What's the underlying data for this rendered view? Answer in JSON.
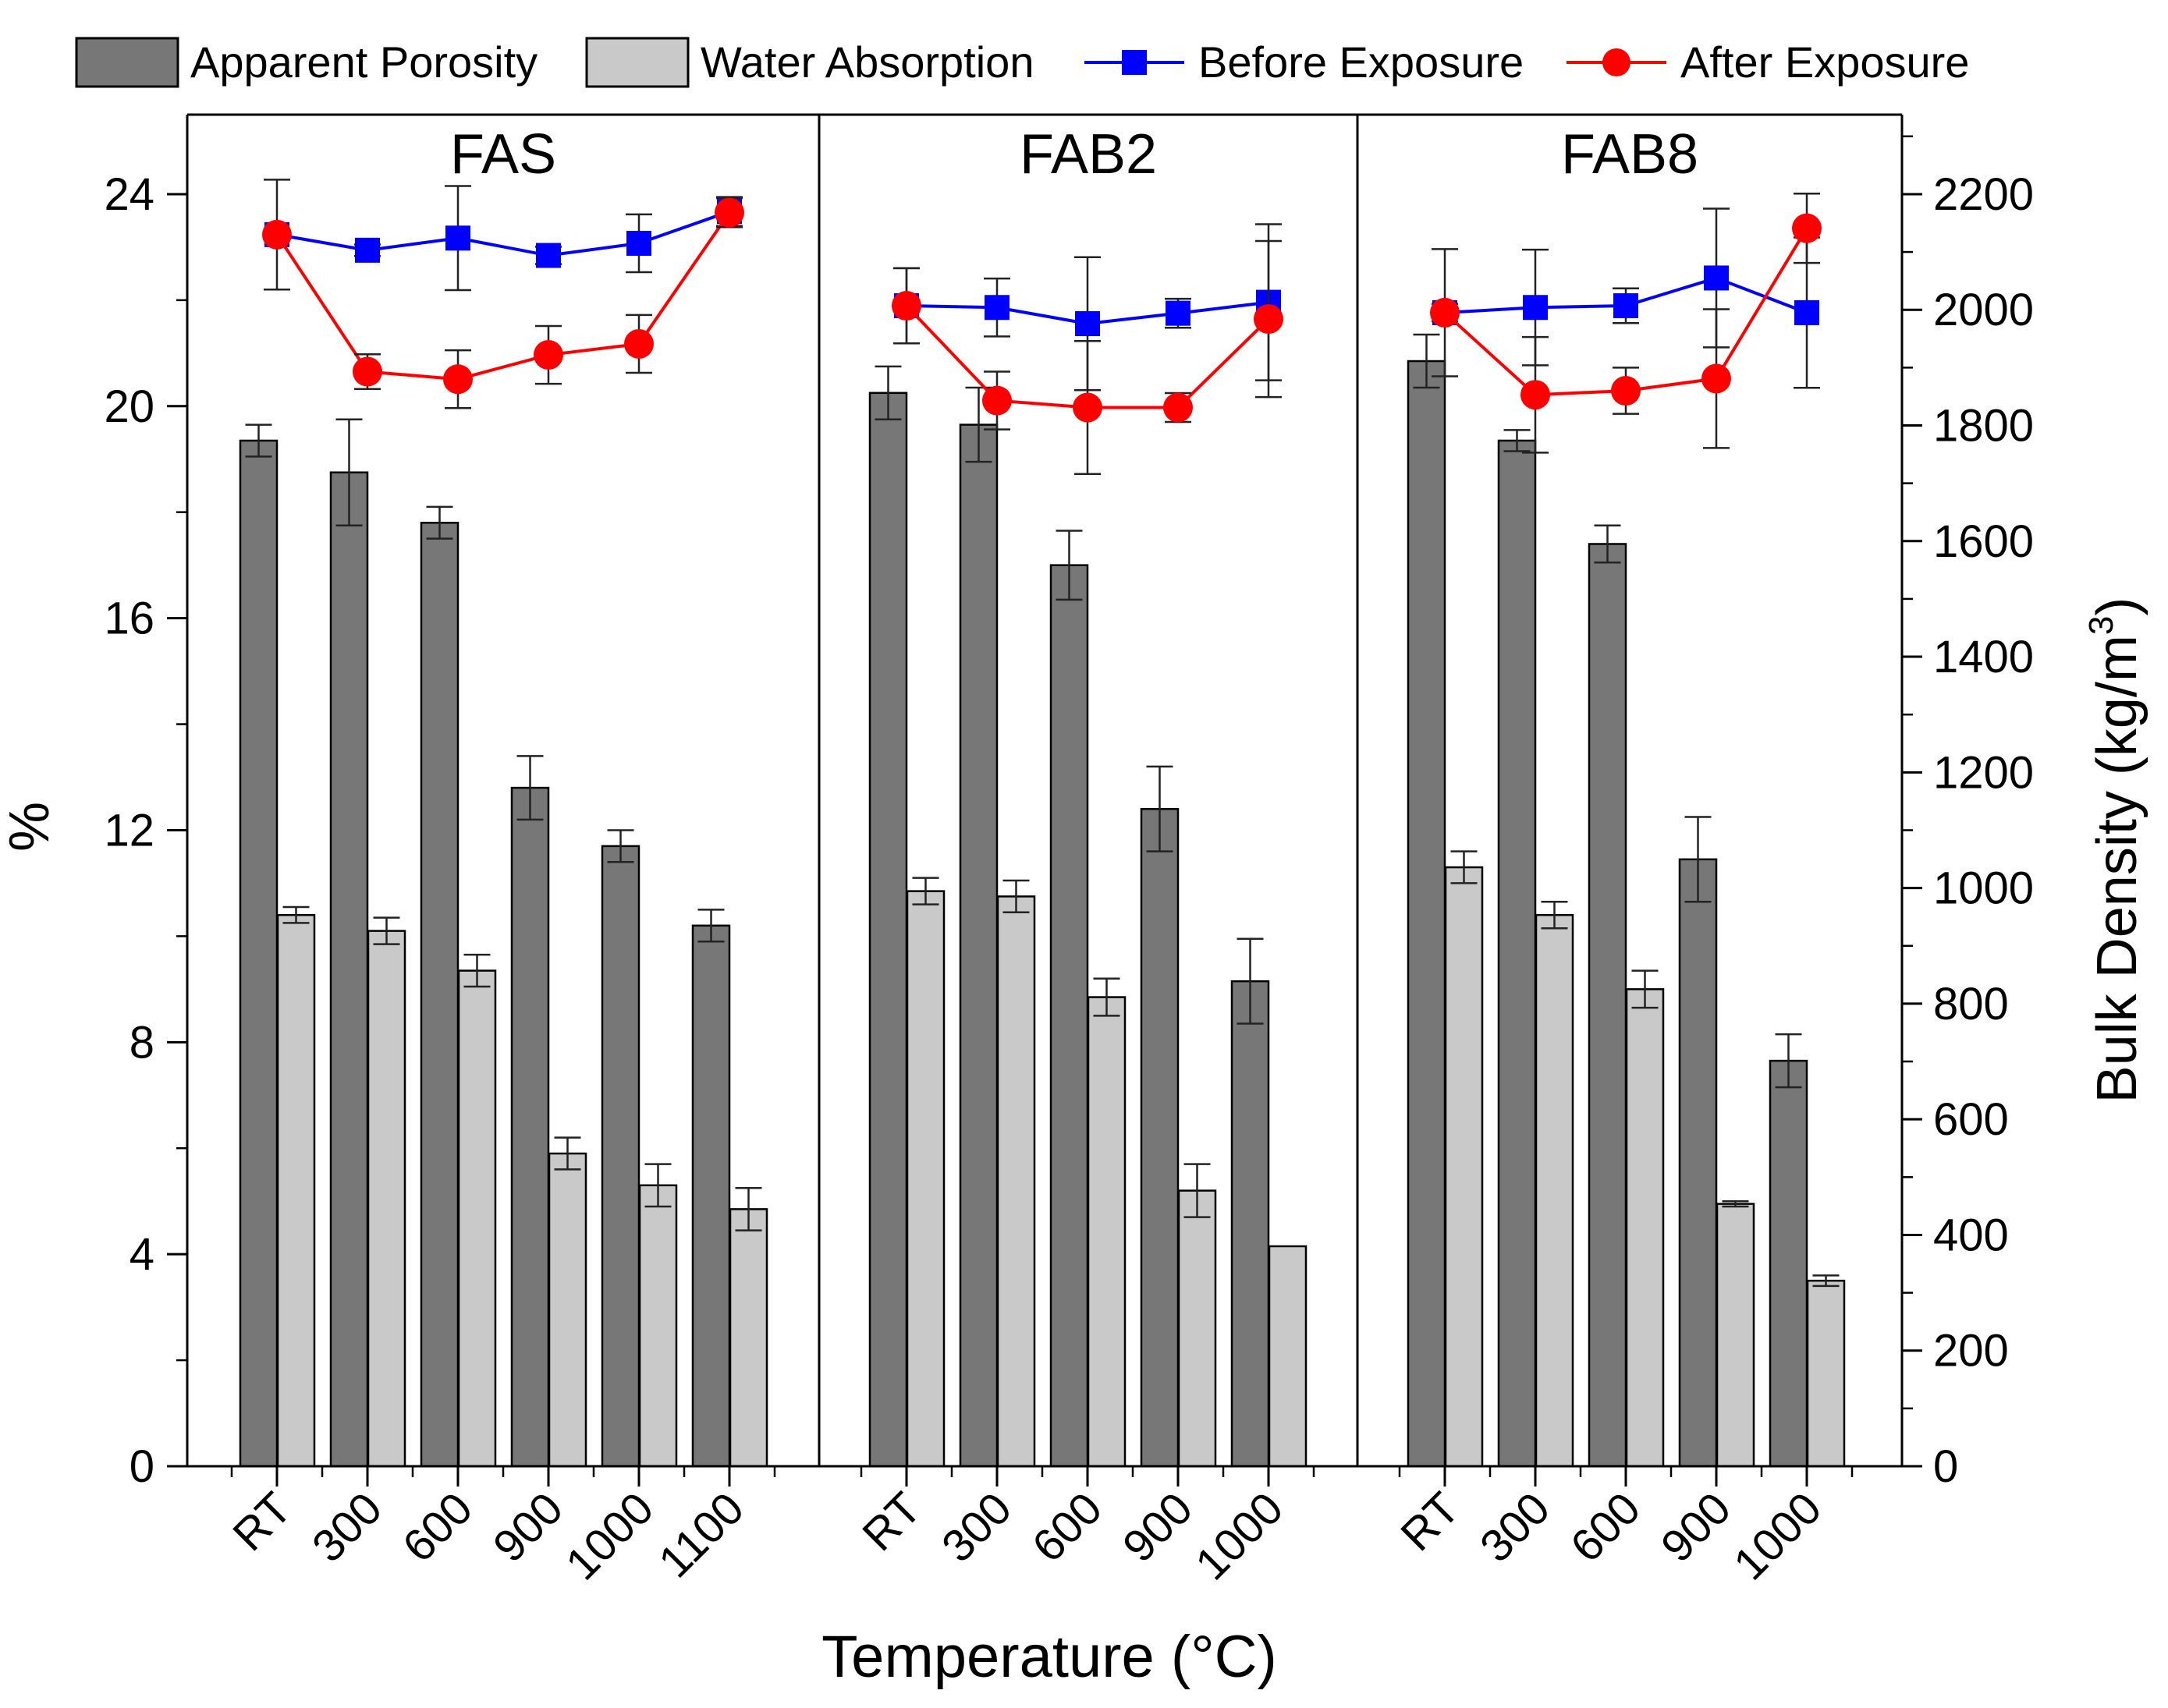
{
  "chart_data": {
    "type": "bar",
    "legend": {
      "position": "top",
      "entries": [
        {
          "key": "porosity",
          "label": "Apparent Porosity",
          "kind": "bar"
        },
        {
          "key": "absorption",
          "label": "Water Absorption",
          "kind": "bar"
        },
        {
          "key": "before",
          "label": "Before Exposure",
          "kind": "line-square"
        },
        {
          "key": "after",
          "label": "After Exposure",
          "kind": "line-circle"
        }
      ]
    },
    "colors": {
      "porosity": "#777777",
      "absorption": "#c9c9c9",
      "before": "#0000ff",
      "after": "#ff0000",
      "axis": "#000000"
    },
    "xlabel": "Temperature (°C)",
    "ylabel_left": "%",
    "ylabel_right": "Bulk Density (kg/m",
    "ylabel_right_sup": "3",
    "ylabel_right_tail": ")",
    "ylim_left": [
      0,
      25.5
    ],
    "ylim_right": [
      0,
      2337.5
    ],
    "yticks_left": [
      0,
      4,
      8,
      12,
      16,
      20,
      24
    ],
    "yticks_right": [
      0,
      200,
      400,
      600,
      800,
      1000,
      1200,
      1400,
      1600,
      1800,
      2000,
      2200
    ],
    "panels": [
      {
        "name": "FAS",
        "categories": [
          "RT",
          "300",
          "600",
          "900",
          "1000",
          "1100"
        ],
        "porosity": [
          19.35,
          18.75,
          17.8,
          12.8,
          11.7,
          10.2
        ],
        "porosity_err": [
          0.3,
          1.0,
          0.3,
          0.6,
          0.3,
          0.3
        ],
        "absorption": [
          10.4,
          10.1,
          9.35,
          5.9,
          5.3,
          4.85
        ],
        "absorption_err": [
          0.15,
          0.25,
          0.3,
          0.3,
          0.4,
          0.4
        ],
        "before_density": [
          2130,
          2103,
          2124,
          2094,
          2115,
          2170
        ],
        "before_err": [
          95,
          10,
          90,
          15,
          50,
          25
        ],
        "after_density": [
          2130,
          1893,
          1880,
          1922,
          1941,
          2168
        ],
        "after_err": [
          10,
          30,
          50,
          50,
          50,
          25
        ]
      },
      {
        "name": "FAB2",
        "categories": [
          "RT",
          "300",
          "600",
          "900",
          "1000"
        ],
        "porosity": [
          20.25,
          19.65,
          17.0,
          12.4,
          9.15
        ],
        "porosity_err": [
          0.5,
          0.7,
          0.65,
          0.8,
          0.8
        ],
        "absorption": [
          10.85,
          10.75,
          8.85,
          5.2,
          4.15
        ],
        "absorption_err": [
          0.25,
          0.3,
          0.35,
          0.5,
          0.0
        ],
        "before_density": [
          2007,
          2004,
          1976,
          1994,
          2013
        ],
        "before_err": [
          65,
          50,
          115,
          25,
          135
        ],
        "after_density": [
          2007,
          1843,
          1831,
          1831,
          1984
        ],
        "after_err": [
          65,
          50,
          115,
          25,
          135
        ]
      },
      {
        "name": "FAB8",
        "categories": [
          "RT",
          "300",
          "600",
          "900",
          "1000"
        ],
        "porosity": [
          20.85,
          19.35,
          17.4,
          11.45,
          7.65
        ],
        "porosity_err": [
          0.5,
          0.2,
          0.35,
          0.8,
          0.5
        ],
        "absorption": [
          11.3,
          10.4,
          9.0,
          4.95,
          3.5
        ],
        "absorption_err": [
          0.3,
          0.25,
          0.35,
          0.05,
          0.1
        ],
        "before_density": [
          1995,
          2004,
          2007,
          2055,
          1995
        ],
        "before_err": [
          110,
          100,
          30,
          120,
          130
        ],
        "after_density": [
          1995,
          1853,
          1860,
          1881,
          2141
        ],
        "after_err": [
          15,
          100,
          40,
          120,
          60
        ]
      }
    ]
  }
}
